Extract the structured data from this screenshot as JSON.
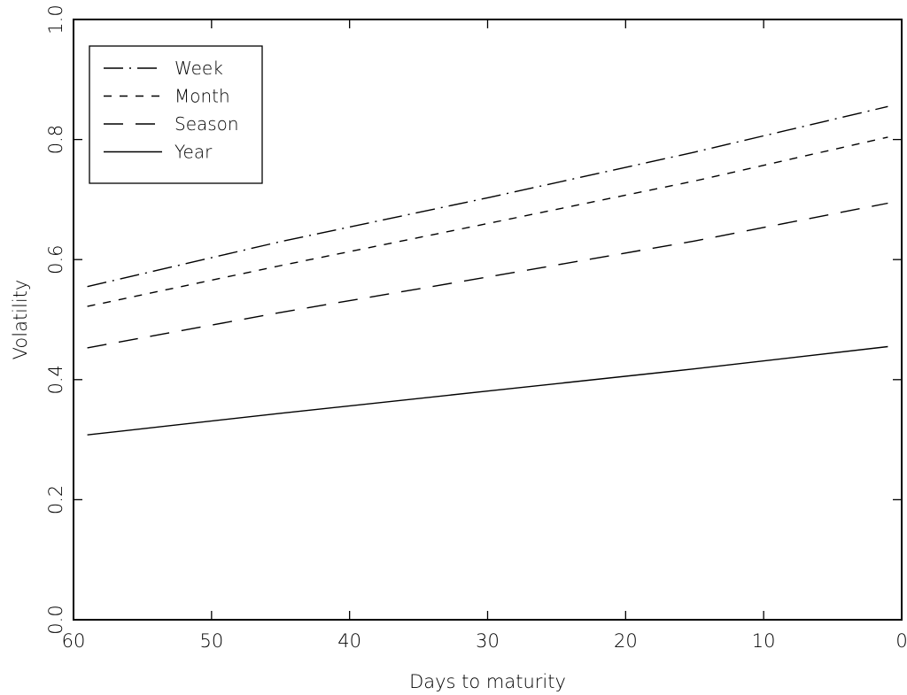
{
  "chart_data": {
    "type": "line",
    "title": "",
    "xlabel": "Days to maturity",
    "ylabel": "Volatility",
    "xlim": [
      60,
      0
    ],
    "ylim": [
      0.0,
      1.0
    ],
    "x_ticks": [
      60,
      50,
      40,
      30,
      20,
      10,
      0
    ],
    "x_tick_labels": [
      "60",
      "50",
      "40",
      "30",
      "20",
      "10",
      "0"
    ],
    "y_ticks": [
      0.0,
      0.2,
      0.4,
      0.6,
      0.8,
      1.0
    ],
    "y_tick_labels": [
      "0.0",
      "0.2",
      "0.4",
      "0.6",
      "0.8",
      "1.0"
    ],
    "x_reversed": true,
    "grid": false,
    "legend_position": "top-left",
    "series": [
      {
        "name": "Week",
        "style": "dash-dot",
        "x": [
          59,
          45,
          30,
          15,
          1
        ],
        "values": [
          0.555,
          0.63,
          0.703,
          0.779,
          0.855
        ]
      },
      {
        "name": "Month",
        "style": "short-dash",
        "x": [
          59,
          45,
          30,
          15,
          1
        ],
        "values": [
          0.522,
          0.59,
          0.66,
          0.731,
          0.804
        ]
      },
      {
        "name": "Season",
        "style": "long-dash",
        "x": [
          59,
          45,
          30,
          15,
          1
        ],
        "values": [
          0.453,
          0.512,
          0.571,
          0.631,
          0.694
        ]
      },
      {
        "name": "Year",
        "style": "solid",
        "x": [
          59,
          45,
          30,
          15,
          1
        ],
        "values": [
          0.308,
          0.344,
          0.381,
          0.418,
          0.455
        ]
      }
    ],
    "colors": {
      "line": "#000000",
      "background": "#ffffff"
    }
  }
}
